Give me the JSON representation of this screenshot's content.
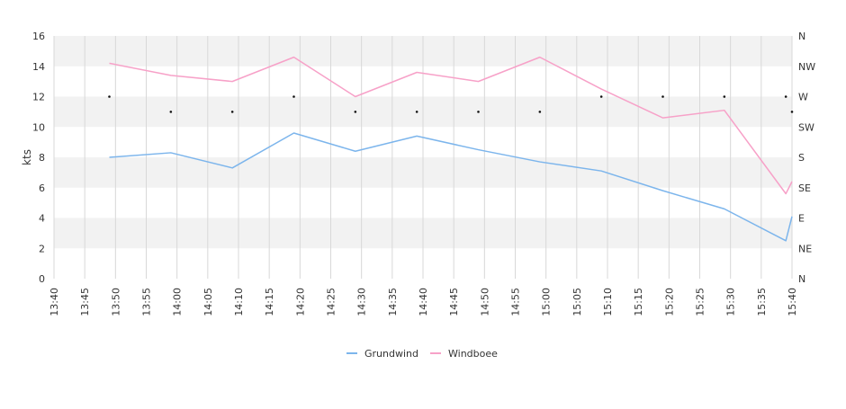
{
  "chart_data": {
    "type": "line",
    "ylabel": "kts",
    "ylim": [
      0,
      16
    ],
    "y_ticks": [
      "0",
      "2",
      "4",
      "6",
      "8",
      "10",
      "12",
      "14",
      "16"
    ],
    "y2_ticks": [
      "N",
      "NE",
      "E",
      "SE",
      "S",
      "SW",
      "W",
      "NW",
      "N"
    ],
    "x_ticks": [
      "13:40",
      "13:45",
      "13:50",
      "13:55",
      "14:00",
      "14:05",
      "14:10",
      "14:15",
      "14:20",
      "14:25",
      "14:30",
      "14:35",
      "14:40",
      "14:45",
      "14:50",
      "14:55",
      "15:00",
      "15:05",
      "15:10",
      "15:15",
      "15:20",
      "15:25",
      "15:30",
      "15:35",
      "15:40"
    ],
    "x": [
      "13:49",
      "13:59",
      "14:09",
      "14:19",
      "14:29",
      "14:39",
      "14:49",
      "14:59",
      "15:09",
      "15:19",
      "15:29",
      "15:39",
      "15:40"
    ],
    "series": [
      {
        "name": "Grundwind",
        "color": "#7cb5ec",
        "values": [
          8.0,
          8.3,
          7.3,
          9.6,
          8.4,
          9.4,
          8.5,
          7.7,
          7.1,
          5.8,
          4.6,
          2.5,
          4.1
        ]
      },
      {
        "name": "Windboee",
        "color": "#f7a1c8",
        "values": [
          14.2,
          13.4,
          13.0,
          14.6,
          12.0,
          13.6,
          13.0,
          14.6,
          12.5,
          10.6,
          11.1,
          5.6,
          6.4
        ]
      }
    ],
    "direction": {
      "x": [
        "13:49",
        "13:59",
        "14:09",
        "14:19",
        "14:29",
        "14:39",
        "14:49",
        "14:59",
        "15:09",
        "15:19",
        "15:29",
        "15:39",
        "15:40"
      ],
      "values": [
        "W",
        "WSW",
        "WSW",
        "W",
        "WSW",
        "WSW",
        "WSW",
        "WSW",
        "W",
        "W",
        "W",
        "W",
        "WSW"
      ]
    },
    "legend_position": "bottom-center",
    "grid": true
  }
}
